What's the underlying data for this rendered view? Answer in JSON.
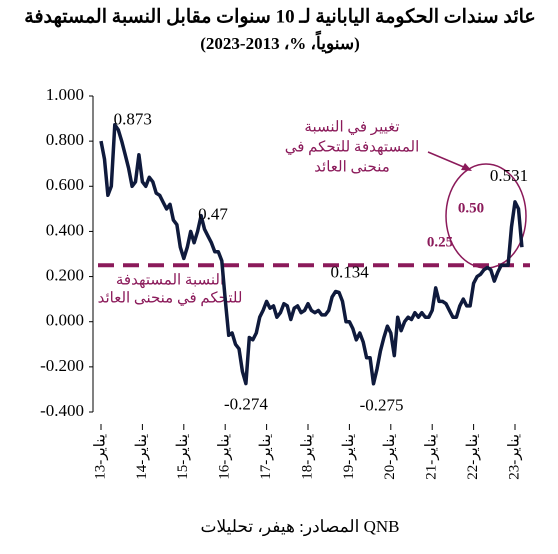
{
  "chart_data": {
    "type": "line",
    "title": "عائد سندات الحكومة اليابانية لـ 10 سنوات مقابل النسبة المستهدفة",
    "subtitle": "(سنوياً، %، 2013-2023)",
    "source": "المصادر: هيفر، تحليلات QNB",
    "x": [
      "2013-01",
      "2013-02",
      "2013-03",
      "2013-04",
      "2013-05",
      "2013-06",
      "2013-07",
      "2013-08",
      "2013-09",
      "2013-10",
      "2013-11",
      "2013-12",
      "2014-01",
      "2014-02",
      "2014-03",
      "2014-04",
      "2014-05",
      "2014-06",
      "2014-07",
      "2014-08",
      "2014-09",
      "2014-10",
      "2014-11",
      "2014-12",
      "2015-01",
      "2015-02",
      "2015-03",
      "2015-04",
      "2015-05",
      "2015-06",
      "2015-07",
      "2015-08",
      "2015-09",
      "2015-10",
      "2015-11",
      "2015-12",
      "2016-01",
      "2016-02",
      "2016-03",
      "2016-04",
      "2016-05",
      "2016-06",
      "2016-07",
      "2016-08",
      "2016-09",
      "2016-10",
      "2016-11",
      "2016-12",
      "2017-01",
      "2017-02",
      "2017-03",
      "2017-04",
      "2017-05",
      "2017-06",
      "2017-07",
      "2017-08",
      "2017-09",
      "2017-10",
      "2017-11",
      "2017-12",
      "2018-01",
      "2018-02",
      "2018-03",
      "2018-04",
      "2018-05",
      "2018-06",
      "2018-07",
      "2018-08",
      "2018-09",
      "2018-10",
      "2018-11",
      "2018-12",
      "2019-01",
      "2019-02",
      "2019-03",
      "2019-04",
      "2019-05",
      "2019-06",
      "2019-07",
      "2019-08",
      "2019-09",
      "2019-10",
      "2019-11",
      "2019-12",
      "2020-01",
      "2020-02",
      "2020-03",
      "2020-04",
      "2020-05",
      "2020-06",
      "2020-07",
      "2020-08",
      "2020-09",
      "2020-10",
      "2020-11",
      "2020-12",
      "2021-01",
      "2021-02",
      "2021-03",
      "2021-04",
      "2021-05",
      "2021-06",
      "2021-07",
      "2021-08",
      "2021-09",
      "2021-10",
      "2021-11",
      "2021-12",
      "2022-01",
      "2022-02",
      "2022-03",
      "2022-04",
      "2022-05",
      "2022-06",
      "2022-07",
      "2022-08",
      "2022-09",
      "2022-10",
      "2022-11",
      "2022-12",
      "2023-01",
      "2023-02",
      "2023-03"
    ],
    "series": [
      {
        "color": "#0f1a3c",
        "values": [
          0.8,
          0.72,
          0.56,
          0.6,
          0.873,
          0.85,
          0.8,
          0.74,
          0.68,
          0.6,
          0.62,
          0.74,
          0.62,
          0.6,
          0.64,
          0.62,
          0.57,
          0.56,
          0.53,
          0.5,
          0.52,
          0.45,
          0.43,
          0.33,
          0.28,
          0.33,
          0.4,
          0.35,
          0.4,
          0.47,
          0.41,
          0.38,
          0.35,
          0.31,
          0.31,
          0.27,
          0.1,
          -0.06,
          -0.05,
          -0.1,
          -0.12,
          -0.22,
          -0.274,
          -0.07,
          -0.08,
          -0.05,
          0.02,
          0.05,
          0.09,
          0.06,
          0.07,
          0.02,
          0.04,
          0.08,
          0.07,
          0.01,
          0.06,
          0.07,
          0.04,
          0.05,
          0.08,
          0.05,
          0.04,
          0.05,
          0.03,
          0.03,
          0.05,
          0.11,
          0.134,
          0.13,
          0.09,
          0.0,
          0.0,
          -0.03,
          -0.08,
          -0.05,
          -0.09,
          -0.16,
          -0.16,
          -0.275,
          -0.21,
          -0.13,
          -0.07,
          -0.02,
          -0.05,
          -0.15,
          0.02,
          -0.04,
          0.0,
          0.02,
          0.01,
          0.04,
          0.02,
          0.04,
          0.02,
          0.02,
          0.05,
          0.15,
          0.09,
          0.09,
          0.08,
          0.05,
          0.02,
          0.02,
          0.07,
          0.1,
          0.07,
          0.07,
          0.17,
          0.2,
          0.21,
          0.23,
          0.24,
          0.23,
          0.18,
          0.22,
          0.25,
          0.25,
          0.25,
          0.42,
          0.531,
          0.5,
          0.33
        ]
      }
    ],
    "ylim": [
      -0.4,
      1.0
    ],
    "yticks": [
      {
        "value": 1.0,
        "label": "1.000"
      },
      {
        "value": 0.8,
        "label": "0.800"
      },
      {
        "value": 0.6,
        "label": "0.600"
      },
      {
        "value": 0.4,
        "label": "0.400"
      },
      {
        "value": 0.2,
        "label": "0.200"
      },
      {
        "value": 0,
        "label": "0.000"
      },
      {
        "value": -0.2,
        "label": "-0.200"
      },
      {
        "value": -0.4,
        "label": "-0.400"
      }
    ],
    "xticks": [
      {
        "value": "2013-01",
        "label": "يناير-13"
      },
      {
        "value": "2014-01",
        "label": "يناير-14"
      },
      {
        "value": "2015-01",
        "label": "يناير-15"
      },
      {
        "value": "2016-01",
        "label": "يناير-16"
      },
      {
        "value": "2017-01",
        "label": "يناير-17"
      },
      {
        "value": "2018-01",
        "label": "يناير-18"
      },
      {
        "value": "2019-01",
        "label": "يناير-19"
      },
      {
        "value": "2020-01",
        "label": "يناير-20"
      },
      {
        "value": "2021-01",
        "label": "يناير-21"
      },
      {
        "value": "2022-01",
        "label": "يناير-22"
      },
      {
        "value": "2023-01",
        "label": "يناير-23"
      }
    ],
    "annotations": [
      {
        "x": "2013-05",
        "y": 0.873
      },
      {
        "x": "2015-06",
        "y": 0.47
      },
      {
        "x": "2016-07",
        "y": -0.274
      },
      {
        "x": "2018-09",
        "y": 0.134
      },
      {
        "x": "2019-08",
        "y": -0.275
      },
      {
        "x": "2023-01",
        "y": 0.531
      }
    ],
    "reference_line": {
      "value": 0.25,
      "color": "#8b1a5a",
      "text": [
        "النسبة المستهدفة",
        "للتحكم في منحنى العائد"
      ]
    },
    "new_target": {
      "value": 0.5,
      "label": "0.50",
      "text": [
        "تغيير في النسبة",
        "المستهدفة للتحكم في",
        "منحنى العائد"
      ]
    }
  }
}
